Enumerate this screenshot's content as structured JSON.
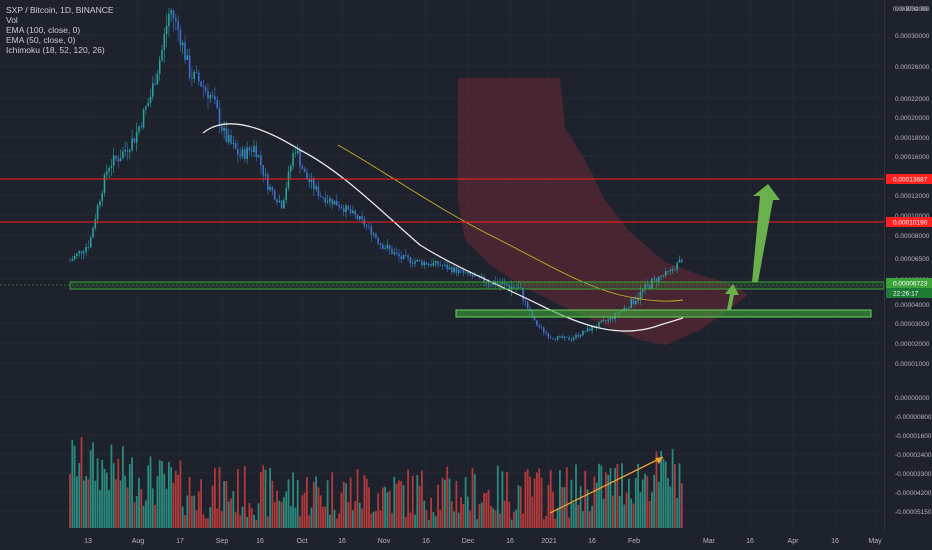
{
  "legend": {
    "symbol": "SXP / Bitcoin, 1D, BINANCE",
    "vol": "Vol",
    "ema100": "EMA (100, close, 0)",
    "ema50": "EMA (50, close, 0)",
    "ichimoku": "Ichimoku (18, 52, 120, 26)"
  },
  "axis": {
    "unit_label": "0.0ı BTC 00"
  },
  "colors": {
    "background": "#1e222d",
    "up": "#26a69a",
    "down": "#3f6fd1",
    "vol_up": "#2a8a7e",
    "vol_down": "#b33a3a",
    "ema100": "#e6e6e6",
    "ema50": "#c9b12a",
    "resistance": "#ff2020",
    "support_zone": "#3ea33a",
    "cloud": "#6b2a35",
    "arrow": "#6ab04c",
    "trendline": "#f0a030"
  },
  "chart_data": {
    "type": "candlestick",
    "price_axis": {
      "ticks": [
        "0.00034000",
        "0.00030000",
        "0.00026000",
        "0.00022000",
        "0.00020000",
        "0.00018000",
        "0.00016000",
        "0.00014000",
        "0.00012000",
        "0.00010000",
        "0.00008000",
        "0.00006500",
        "0.00005000",
        "0.00004000",
        "0.00003000",
        "0.00002000",
        "0.00001000",
        "0.00000000",
        "-0.00000800",
        "-0.00001600",
        "-0.00002400",
        "-0.00003300",
        "-0.00004200",
        "-0.00005150"
      ],
      "badges": [
        {
          "label": "0.00013687",
          "kind": "resistance"
        },
        {
          "label": "0.00010190",
          "kind": "resistance"
        },
        {
          "label": "0.00006723",
          "kind": "price"
        },
        {
          "label": "22:26:17",
          "kind": "timer"
        }
      ]
    },
    "time_axis": [
      "13",
      "Aug",
      "17",
      "Sep",
      "16",
      "Oct",
      "16",
      "Nov",
      "16",
      "Dec",
      "16",
      "2021",
      "16",
      "Feb",
      "Mar",
      "16",
      "Apr",
      "16",
      "May"
    ],
    "resistance_levels": [
      0.00013687,
      0.0001019
    ],
    "support_zones": [
      [
        6e-05,
        6.4e-05
      ],
      [
        4.5e-05,
        4.85e-05
      ]
    ],
    "volume_trend": "rising"
  }
}
